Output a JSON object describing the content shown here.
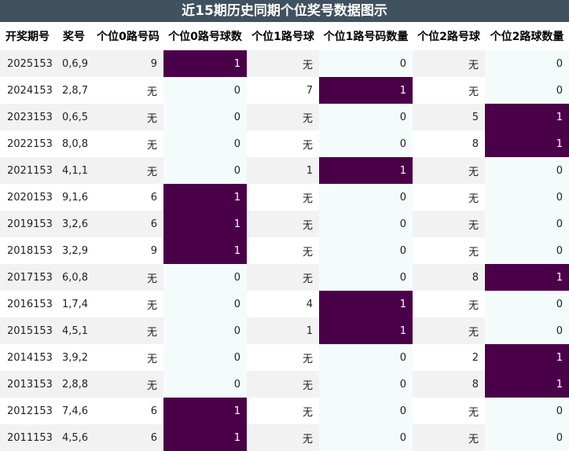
{
  "title": "近15期历史同期个位奖号数据图示",
  "headers": [
    "开奖期号",
    "奖号",
    "个位0路号码",
    "个位0路号球数",
    "个位1路号球",
    "个位1路号码数量",
    "个位2路号球",
    "个位2路球数量"
  ],
  "colors": {
    "title_bg": "#40515f",
    "hit": "#4a0048",
    "count_bg": "#f4fbfb",
    "stripe": "#f2f2f2"
  },
  "rows": [
    [
      "2025153",
      "0,6,9",
      "9",
      "1",
      "无",
      "0",
      "无",
      "0"
    ],
    [
      "2024153",
      "2,8,7",
      "无",
      "0",
      "7",
      "1",
      "无",
      "0"
    ],
    [
      "2023153",
      "0,6,5",
      "无",
      "0",
      "无",
      "0",
      "5",
      "1"
    ],
    [
      "2022153",
      "8,0,8",
      "无",
      "0",
      "无",
      "0",
      "8",
      "1"
    ],
    [
      "2021153",
      "4,1,1",
      "无",
      "0",
      "1",
      "1",
      "无",
      "0"
    ],
    [
      "2020153",
      "9,1,6",
      "6",
      "1",
      "无",
      "0",
      "无",
      "0"
    ],
    [
      "2019153",
      "3,2,6",
      "6",
      "1",
      "无",
      "0",
      "无",
      "0"
    ],
    [
      "2018153",
      "3,2,9",
      "9",
      "1",
      "无",
      "0",
      "无",
      "0"
    ],
    [
      "2017153",
      "6,0,8",
      "无",
      "0",
      "无",
      "0",
      "8",
      "1"
    ],
    [
      "2016153",
      "1,7,4",
      "无",
      "0",
      "4",
      "1",
      "无",
      "0"
    ],
    [
      "2015153",
      "4,5,1",
      "无",
      "0",
      "1",
      "1",
      "无",
      "0"
    ],
    [
      "2014153",
      "3,9,2",
      "无",
      "0",
      "无",
      "0",
      "2",
      "1"
    ],
    [
      "2013153",
      "2,8,8",
      "无",
      "0",
      "无",
      "0",
      "8",
      "1"
    ],
    [
      "2012153",
      "7,4,6",
      "6",
      "1",
      "无",
      "0",
      "无",
      "0"
    ],
    [
      "2011153",
      "4,5,6",
      "6",
      "1",
      "无",
      "0",
      "无",
      "0"
    ]
  ]
}
